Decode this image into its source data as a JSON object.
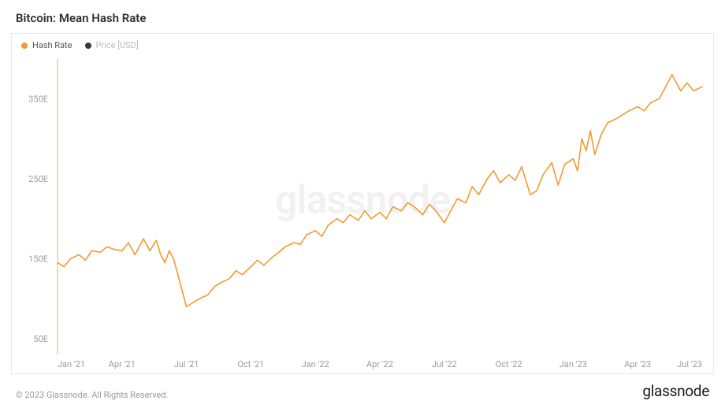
{
  "title": "Bitcoin: Mean Hash Rate",
  "watermark": "glassnode",
  "brand": "glassnode",
  "copyright": "© 2023 Glassnode. All Rights Reserved.",
  "legend": {
    "series1": {
      "label": "Hash Rate",
      "color": "#f29a2e"
    },
    "series2": {
      "label": "Price [USD]",
      "color": "#3a3a3a",
      "muted": true
    }
  },
  "chart": {
    "type": "line",
    "background_color": "#ffffff",
    "border_color": "#e8e8e8",
    "line_color": "#f29a2e",
    "line_width": 1.6,
    "y_axis_line_color": "#f6b24a",
    "axis_label_color": "#9c9c9c",
    "axis_fontsize": 11,
    "ylim": [
      30,
      400
    ],
    "yticks": [
      50,
      150,
      250,
      350
    ],
    "ytick_labels": [
      "50E",
      "150E",
      "250E",
      "350E"
    ],
    "xlim": [
      0,
      30
    ],
    "xticks": [
      0,
      3,
      6,
      9,
      12,
      15,
      18,
      21,
      24,
      27,
      30
    ],
    "xtick_labels": [
      "Jan '21",
      "Apr '21",
      "Jul '21",
      "Oct '21",
      "Jan '22",
      "Apr '22",
      "Jul '22",
      "Oct '22",
      "Jan '23",
      "Apr '23",
      "Jul '23"
    ],
    "series": {
      "hash_rate": {
        "x": [
          0,
          0.3,
          0.6,
          1,
          1.3,
          1.6,
          2,
          2.3,
          2.6,
          3,
          3.3,
          3.6,
          4,
          4.3,
          4.6,
          4.8,
          5,
          5.2,
          5.4,
          5.6,
          5.8,
          6,
          6.3,
          6.6,
          7,
          7.3,
          7.6,
          8,
          8.3,
          8.6,
          9,
          9.3,
          9.6,
          10,
          10.3,
          10.6,
          11,
          11.3,
          11.6,
          12,
          12.3,
          12.6,
          13,
          13.3,
          13.6,
          14,
          14.3,
          14.6,
          15,
          15.3,
          15.6,
          16,
          16.3,
          16.6,
          17,
          17.3,
          17.6,
          18,
          18.3,
          18.6,
          19,
          19.3,
          19.6,
          20,
          20.3,
          20.6,
          21,
          21.3,
          21.6,
          22,
          22.3,
          22.6,
          23,
          23.3,
          23.6,
          24,
          24.2,
          24.4,
          24.6,
          24.8,
          25,
          25.3,
          25.6,
          26,
          26.3,
          26.6,
          27,
          27.3,
          27.6,
          28,
          28.3,
          28.6,
          29,
          29.3,
          29.6,
          30
        ],
        "y": [
          145,
          140,
          150,
          155,
          148,
          160,
          158,
          165,
          162,
          160,
          170,
          155,
          175,
          160,
          173,
          155,
          145,
          160,
          150,
          130,
          110,
          90,
          95,
          100,
          105,
          115,
          120,
          125,
          135,
          130,
          140,
          148,
          142,
          152,
          158,
          165,
          170,
          168,
          180,
          185,
          178,
          192,
          200,
          195,
          205,
          198,
          210,
          200,
          208,
          200,
          215,
          210,
          220,
          215,
          205,
          218,
          210,
          195,
          210,
          225,
          220,
          240,
          230,
          250,
          260,
          245,
          255,
          248,
          265,
          230,
          235,
          255,
          270,
          242,
          268,
          275,
          260,
          300,
          285,
          310,
          280,
          305,
          320,
          325,
          330,
          335,
          340,
          335,
          345,
          350,
          365,
          380,
          360,
          370,
          360,
          365
        ]
      }
    }
  }
}
